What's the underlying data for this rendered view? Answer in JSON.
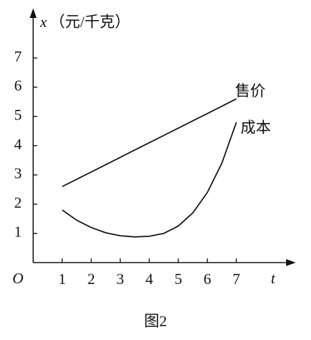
{
  "chart_data": {
    "type": "line",
    "y_label_var": "x",
    "y_label_unit": "（元/千克）",
    "x_label": "t",
    "origin_label": "O",
    "caption": "图2",
    "x": [
      1,
      1.5,
      2,
      2.5,
      3,
      3.5,
      4,
      4.5,
      5,
      5.5,
      6,
      6.5,
      7
    ],
    "series": [
      {
        "name": "售价",
        "color": "#111111",
        "values": [
          2.6,
          2.85,
          3.1,
          3.35,
          3.6,
          3.85,
          4.1,
          4.35,
          4.6,
          4.85,
          5.1,
          5.35,
          5.6
        ]
      },
      {
        "name": "成本",
        "color": "#111111",
        "values": [
          1.8,
          1.45,
          1.2,
          1.02,
          0.92,
          0.88,
          0.9,
          1.0,
          1.25,
          1.7,
          2.4,
          3.4,
          4.8
        ]
      }
    ],
    "xlim": [
      0,
      8.9
    ],
    "ylim": [
      0,
      8.6
    ],
    "xticks": [
      1,
      2,
      3,
      4,
      5,
      6,
      7
    ],
    "yticks": [
      1,
      2,
      3,
      4,
      5,
      6,
      7
    ]
  }
}
